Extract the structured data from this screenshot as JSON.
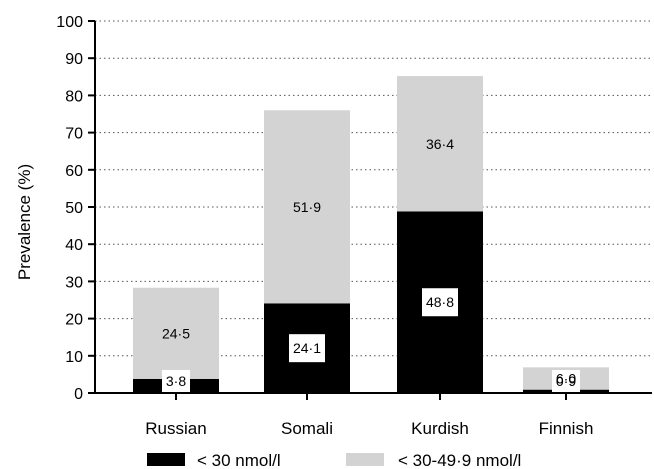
{
  "chart_data": {
    "type": "bar",
    "stacked": true,
    "categories": [
      "Russian",
      "Somali",
      "Kurdish",
      "Finnish"
    ],
    "series": [
      {
        "name": "< 30 nmol/l",
        "color": "#000000",
        "values": [
          3.8,
          24.1,
          48.8,
          0.9
        ],
        "labels": [
          "3·8",
          "24·1",
          "48·8",
          "0·9"
        ]
      },
      {
        "name": "< 30-49·9 nmol/l",
        "color": "#d3d3d3",
        "values": [
          24.5,
          51.9,
          36.4,
          6.0
        ],
        "labels": [
          "24·5",
          "51·9",
          "36·4",
          "6·0"
        ]
      }
    ],
    "ylabel": "Prevalence (%)",
    "ylim": [
      0,
      100
    ],
    "yticks": [
      "0",
      "10",
      "20",
      "30",
      "40",
      "50",
      "60",
      "70",
      "80",
      "90",
      "100"
    ],
    "grid": true,
    "grid_style": "dotted",
    "legend_position": "bottom"
  }
}
